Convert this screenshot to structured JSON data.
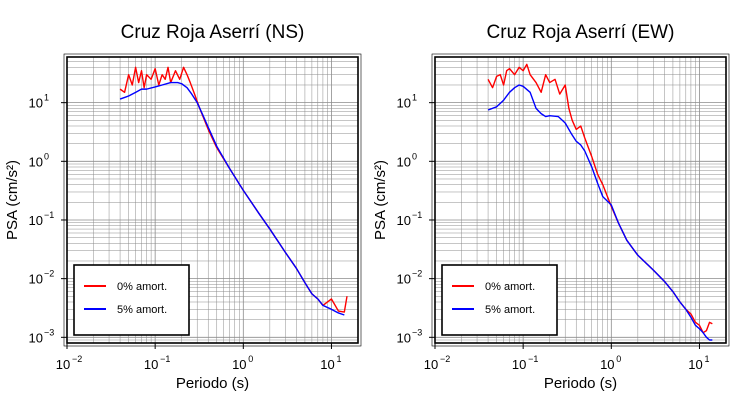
{
  "chart_data": [
    {
      "type": "line",
      "title": "Cruz Roja Aserrí (NS)",
      "xlabel": "Periodo (s)",
      "ylabel": "PSA (cm/s²)",
      "xscale": "log",
      "yscale": "log",
      "xlim": [
        0.01,
        20
      ],
      "ylim": [
        0.0008,
        60
      ],
      "xticks": [
        {
          "value": 0.01,
          "base": "10",
          "exp": "−2"
        },
        {
          "value": 0.1,
          "base": "10",
          "exp": "−1"
        },
        {
          "value": 1,
          "base": "10",
          "exp": "0"
        },
        {
          "value": 10,
          "base": "10",
          "exp": "1"
        }
      ],
      "yticks": [
        {
          "value": 0.001,
          "base": "10",
          "exp": "−3"
        },
        {
          "value": 0.01,
          "base": "10",
          "exp": "−2"
        },
        {
          "value": 0.1,
          "base": "10",
          "exp": "−1"
        },
        {
          "value": 1,
          "base": "10",
          "exp": "0"
        },
        {
          "value": 10,
          "base": "10",
          "exp": "1"
        }
      ],
      "grid": true,
      "legend_position": "bottom-left",
      "series": [
        {
          "name": "0% amort.",
          "color": "#ff0000",
          "x": [
            0.04,
            0.045,
            0.05,
            0.055,
            0.06,
            0.065,
            0.07,
            0.075,
            0.08,
            0.09,
            0.1,
            0.11,
            0.12,
            0.13,
            0.14,
            0.15,
            0.17,
            0.19,
            0.21,
            0.23,
            0.25,
            0.28,
            0.32,
            0.4,
            0.5,
            0.7,
            1.0,
            1.5,
            2.0,
            3.0,
            4.0,
            5.0,
            6.0,
            7.0,
            8.0,
            10.0,
            12.0,
            14.0,
            15.0
          ],
          "y": [
            17,
            15,
            30,
            20,
            40,
            22,
            35,
            18,
            30,
            25,
            38,
            20,
            30,
            25,
            40,
            22,
            35,
            25,
            40,
            30,
            22,
            14,
            8,
            3.5,
            1.7,
            0.75,
            0.32,
            0.13,
            0.07,
            0.028,
            0.015,
            0.0085,
            0.0055,
            0.0045,
            0.0035,
            0.0045,
            0.0028,
            0.0027,
            0.005
          ]
        },
        {
          "name": "5% amort.",
          "color": "#0000ff",
          "x": [
            0.04,
            0.05,
            0.06,
            0.07,
            0.08,
            0.1,
            0.12,
            0.15,
            0.18,
            0.2,
            0.23,
            0.26,
            0.3,
            0.35,
            0.4,
            0.5,
            0.7,
            1.0,
            1.5,
            2.0,
            3.0,
            4.0,
            5.0,
            6.0,
            7.0,
            8.0,
            10.0,
            12.0,
            14.0
          ],
          "y": [
            11.5,
            13,
            15,
            17,
            17,
            18.5,
            20,
            22,
            22,
            21,
            18,
            14,
            10,
            6,
            3.8,
            1.8,
            0.75,
            0.32,
            0.13,
            0.07,
            0.028,
            0.015,
            0.0085,
            0.0055,
            0.0045,
            0.0035,
            0.003,
            0.0026,
            0.0024
          ]
        }
      ]
    },
    {
      "type": "line",
      "title": "Cruz Roja Aserrí (EW)",
      "xlabel": "Periodo (s)",
      "ylabel": "PSA (cm/s²)",
      "xscale": "log",
      "yscale": "log",
      "xlim": [
        0.01,
        20
      ],
      "ylim": [
        0.0008,
        60
      ],
      "xticks": [
        {
          "value": 0.01,
          "base": "10",
          "exp": "−2"
        },
        {
          "value": 0.1,
          "base": "10",
          "exp": "−1"
        },
        {
          "value": 1,
          "base": "10",
          "exp": "0"
        },
        {
          "value": 10,
          "base": "10",
          "exp": "1"
        }
      ],
      "yticks": [
        {
          "value": 0.001,
          "base": "10",
          "exp": "−3"
        },
        {
          "value": 0.01,
          "base": "10",
          "exp": "−2"
        },
        {
          "value": 0.1,
          "base": "10",
          "exp": "−1"
        },
        {
          "value": 1,
          "base": "10",
          "exp": "0"
        },
        {
          "value": 10,
          "base": "10",
          "exp": "1"
        }
      ],
      "grid": true,
      "legend_position": "bottom-left",
      "series": [
        {
          "name": "0% amort.",
          "color": "#ff0000",
          "x": [
            0.04,
            0.045,
            0.05,
            0.055,
            0.06,
            0.065,
            0.07,
            0.08,
            0.09,
            0.1,
            0.11,
            0.12,
            0.14,
            0.16,
            0.18,
            0.2,
            0.23,
            0.26,
            0.3,
            0.33,
            0.36,
            0.4,
            0.45,
            0.5,
            0.6,
            0.7,
            0.8,
            1.0,
            1.2,
            1.5,
            2.0,
            3.0,
            4.0,
            5.0,
            6.0,
            7.0,
            8.0,
            9.0,
            10.0,
            11.0,
            12.0,
            13.0,
            14.0
          ],
          "y": [
            25,
            18,
            28,
            30,
            20,
            35,
            38,
            30,
            40,
            35,
            45,
            30,
            22,
            15,
            30,
            22,
            25,
            14,
            20,
            8,
            5,
            3.5,
            4,
            2.5,
            1.2,
            0.6,
            0.4,
            0.17,
            0.09,
            0.045,
            0.025,
            0.014,
            0.009,
            0.006,
            0.004,
            0.003,
            0.0025,
            0.0018,
            0.0016,
            0.0012,
            0.0013,
            0.0018,
            0.0017
          ]
        },
        {
          "name": "5% amort.",
          "color": "#0000ff",
          "x": [
            0.04,
            0.05,
            0.06,
            0.07,
            0.08,
            0.09,
            0.1,
            0.12,
            0.14,
            0.16,
            0.18,
            0.2,
            0.25,
            0.3,
            0.35,
            0.4,
            0.45,
            0.5,
            0.6,
            0.7,
            0.8,
            1.0,
            1.2,
            1.5,
            2.0,
            3.0,
            4.0,
            5.0,
            6.0,
            7.0,
            8.0,
            9.0,
            10.0,
            11.0,
            12.0,
            13.0,
            14.0
          ],
          "y": [
            7.5,
            8.5,
            11,
            15,
            18,
            20,
            19,
            15,
            8,
            6.5,
            5.8,
            6,
            5.8,
            4.5,
            3,
            2.2,
            1.9,
            1.5,
            0.8,
            0.42,
            0.25,
            0.18,
            0.09,
            0.045,
            0.025,
            0.014,
            0.009,
            0.006,
            0.004,
            0.003,
            0.0022,
            0.0016,
            0.0014,
            0.0012,
            0.001,
            0.0009,
            0.0009
          ]
        }
      ]
    }
  ]
}
